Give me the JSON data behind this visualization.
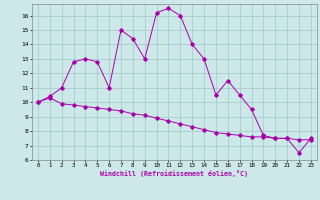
{
  "xlabel": "Windchill (Refroidissement éolien,°C)",
  "x": [
    0,
    1,
    2,
    3,
    4,
    5,
    6,
    7,
    8,
    9,
    10,
    11,
    12,
    13,
    14,
    15,
    16,
    17,
    18,
    19,
    20,
    21,
    22,
    23
  ],
  "line1": [
    10.0,
    10.3,
    9.9,
    9.8,
    9.7,
    9.6,
    9.5,
    9.4,
    9.2,
    9.1,
    8.9,
    8.7,
    8.5,
    8.3,
    8.1,
    7.9,
    7.8,
    7.7,
    7.6,
    7.6,
    7.5,
    7.5,
    7.4,
    7.4
  ],
  "line2": [
    10.0,
    10.4,
    11.0,
    12.8,
    13.0,
    12.8,
    11.0,
    15.0,
    14.4,
    13.0,
    16.2,
    16.5,
    16.0,
    14.0,
    13.0,
    10.5,
    11.5,
    10.5,
    9.5,
    7.7,
    7.5,
    7.5,
    6.5,
    7.5
  ],
  "line_color": "#aa00aa",
  "bg_color": "#cce8e8",
  "grid_color": "#aacccc",
  "ylim": [
    6,
    16.8
  ],
  "xlim": [
    -0.5,
    23.5
  ],
  "yticks": [
    6,
    7,
    8,
    9,
    10,
    11,
    12,
    13,
    14,
    15,
    16
  ],
  "xticks": [
    0,
    1,
    2,
    3,
    4,
    5,
    6,
    7,
    8,
    9,
    10,
    11,
    12,
    13,
    14,
    15,
    16,
    17,
    18,
    19,
    20,
    21,
    22,
    23
  ]
}
